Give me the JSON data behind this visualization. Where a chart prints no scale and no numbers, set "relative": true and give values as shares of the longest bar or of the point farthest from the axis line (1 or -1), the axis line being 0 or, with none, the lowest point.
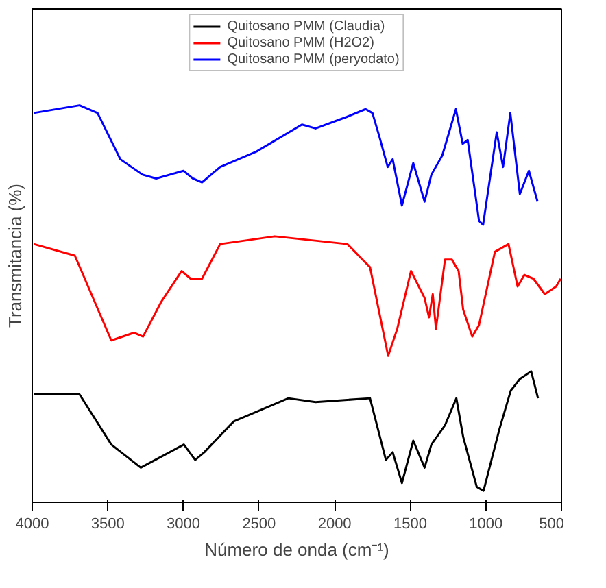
{
  "chart_data": {
    "type": "line",
    "relative": true,
    "xlabel": "Número de onda (cm⁻¹)",
    "ylabel": "Transmitancia (%)",
    "xlim": [
      4000,
      500
    ],
    "xticks": [
      4000,
      3500,
      3000,
      2500,
      2000,
      1500,
      1000,
      500
    ],
    "grid": false,
    "legend": "top",
    "line_style": "solid",
    "marker": "none",
    "series": [
      {
        "name": "Quitosano PMM (Claudia)",
        "color": "#000000",
        "x": [
          3990,
          3687,
          3477,
          3282,
          2997,
          2922,
          2862,
          2667,
          2306,
          2126,
          1766,
          1661,
          1616,
          1555,
          1480,
          1405,
          1360,
          1270,
          1195,
          1150,
          1060,
          1015,
          910,
          835,
          775,
          700,
          655
        ],
        "values": [
          0.25,
          0.25,
          0.12,
          0.06,
          0.12,
          0.08,
          0.1,
          0.18,
          0.24,
          0.23,
          0.24,
          0.08,
          0.1,
          0.02,
          0.13,
          0.06,
          0.12,
          0.17,
          0.24,
          0.14,
          0.01,
          0,
          0.16,
          0.26,
          0.29,
          0.31,
          0.24
        ]
      },
      {
        "name": "Quitosano PMM (H2O2)",
        "color": "#ff0000",
        "x": [
          3990,
          3718,
          3477,
          3327,
          3267,
          3147,
          3012,
          2952,
          2877,
          2757,
          2396,
          1916,
          1766,
          1646,
          1586,
          1495,
          1405,
          1376,
          1351,
          1330,
          1270,
          1225,
          1180,
          1150,
          1090,
          1045,
          940,
          850,
          790,
          745,
          685,
          610,
          535,
          505
        ],
        "values": [
          0.64,
          0.61,
          0.39,
          0.41,
          0.4,
          0.49,
          0.57,
          0.55,
          0.55,
          0.64,
          0.66,
          0.64,
          0.58,
          0.35,
          0.42,
          0.57,
          0.5,
          0.45,
          0.51,
          0.42,
          0.6,
          0.6,
          0.57,
          0.47,
          0.4,
          0.43,
          0.62,
          0.64,
          0.53,
          0.56,
          0.55,
          0.51,
          0.53,
          0.55
        ]
      },
      {
        "name": "Quitosano PMM (peryodato)",
        "color": "#0000ff",
        "x": [
          3990,
          3687,
          3568,
          3417,
          3270,
          3180,
          3000,
          2937,
          2877,
          2757,
          2517,
          2216,
          2126,
          1919,
          1795,
          1750,
          1705,
          1649,
          1616,
          1555,
          1480,
          1405,
          1360,
          1288,
          1198,
          1153,
          1120,
          1045,
          1018,
          928,
          886,
          838,
          775,
          715,
          658
        ],
        "values": [
          0.98,
          1.0,
          0.98,
          0.86,
          0.82,
          0.81,
          0.83,
          0.81,
          0.8,
          0.84,
          0.88,
          0.95,
          0.94,
          0.97,
          0.99,
          0.98,
          0.92,
          0.84,
          0.86,
          0.74,
          0.85,
          0.75,
          0.82,
          0.87,
          0.99,
          0.9,
          0.91,
          0.7,
          0.69,
          0.93,
          0.84,
          0.98,
          0.77,
          0.83,
          0.75
        ]
      }
    ]
  }
}
